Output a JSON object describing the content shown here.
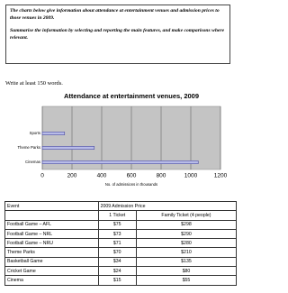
{
  "prompt": {
    "paragraphs": [
      "The charts below give information about attendance at entertainment venues and admission prices to those venues in 2009.",
      "Summarise the information by selecting and reporting the main features, and make comparisons where relevant."
    ]
  },
  "instruction": "Write at least 150 words.",
  "chart_data": {
    "type": "barh",
    "title": "Attendance at entertainment venues, 2009",
    "categories": [
      "Sports",
      "Theme Parks",
      "Cinemas"
    ],
    "values": [
      150,
      350,
      1050
    ],
    "color": "#b8bce8",
    "edgecolor": "#4a4aa0",
    "xlim": [
      0,
      1200
    ],
    "xticks": [
      0,
      200,
      400,
      600,
      800,
      1000,
      1200
    ],
    "xlabel": "No. of admissions in thousands",
    "grid": true
  },
  "table": {
    "header": [
      "Event",
      "2009 Admission Price"
    ],
    "subheader": [
      "1 Ticket",
      "Family Ticket (4 people)"
    ],
    "rows": [
      [
        "Football Game – AFL",
        "$75",
        "$298"
      ],
      [
        "Football Game – NRL",
        "$73",
        "$290"
      ],
      [
        "Football Game – NRU",
        "$71",
        "$280"
      ],
      [
        "Theme Parks",
        "$70",
        "$210"
      ],
      [
        "Basketball Game",
        "$34",
        "$135"
      ],
      [
        "Cricket Game",
        "$24",
        "$80"
      ],
      [
        "Cinema",
        "$15",
        "$55"
      ]
    ]
  }
}
